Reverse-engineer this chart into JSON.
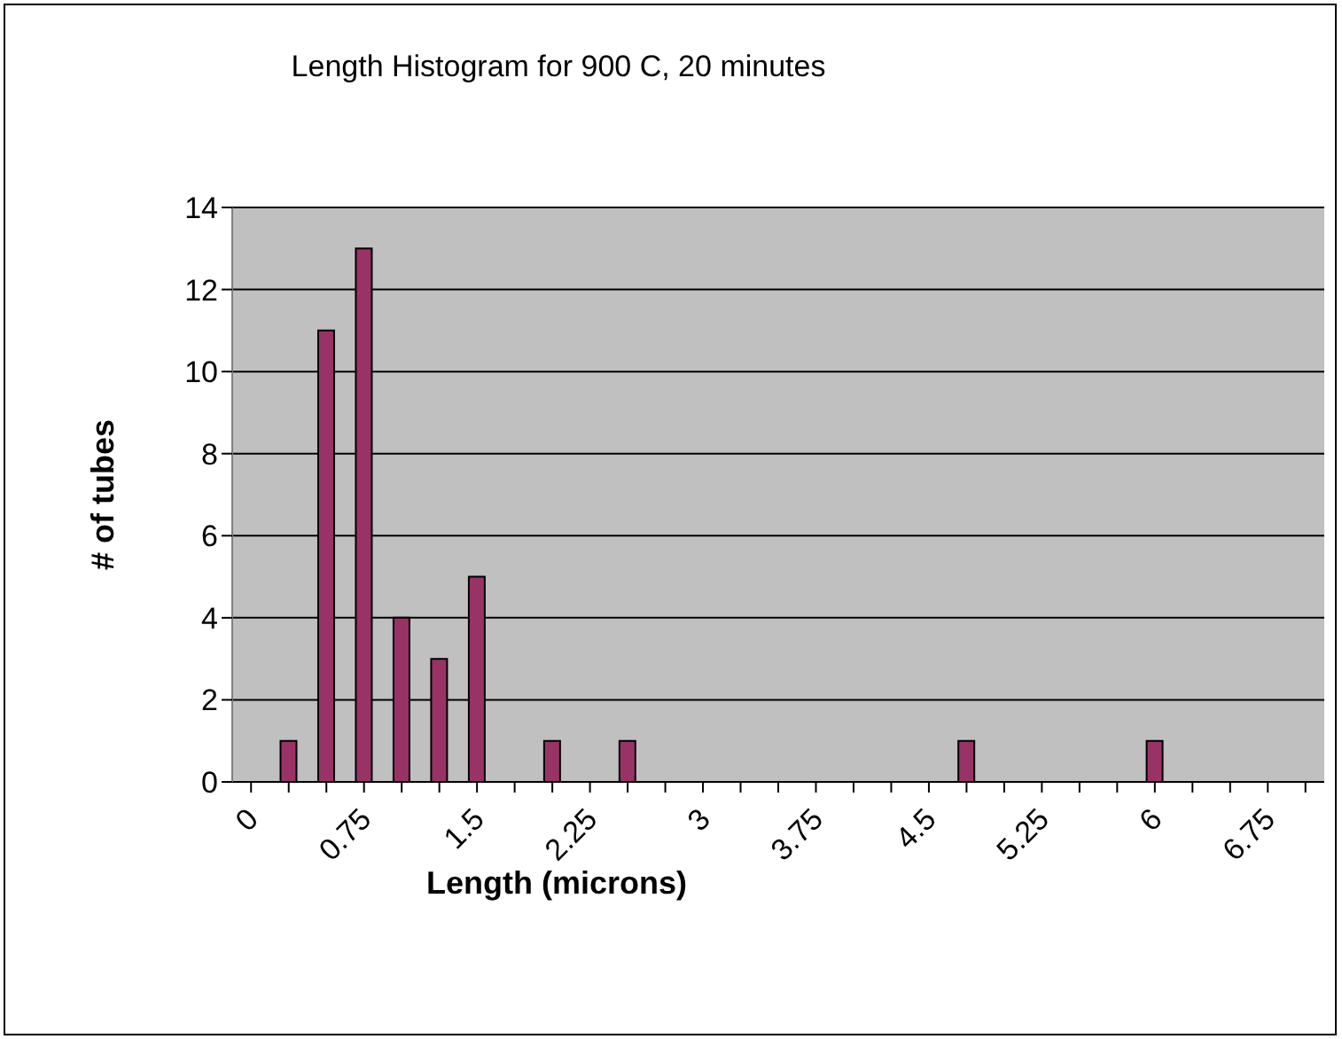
{
  "chart_data": {
    "type": "bar",
    "title": "Length Histogram for 900 C, 20 minutes",
    "xlabel": "Length (microns)",
    "ylabel": "# of tubes",
    "categories": [
      "0",
      null,
      null,
      "0.75",
      null,
      null,
      "1.5",
      null,
      null,
      "2.25",
      null,
      null,
      "3",
      null,
      null,
      "3.75",
      null,
      null,
      "4.5",
      null,
      null,
      "5.25",
      null,
      null,
      "6",
      null,
      null,
      "6.75",
      null
    ],
    "values": [
      0,
      1,
      11,
      13,
      4,
      3,
      5,
      0,
      1,
      0,
      1,
      0,
      0,
      0,
      0,
      0,
      0,
      0,
      0,
      1,
      0,
      0,
      0,
      0,
      1,
      0,
      0,
      0,
      0
    ],
    "color": "#993366",
    "ylim": [
      0,
      14
    ],
    "yticks": [
      0,
      2,
      4,
      6,
      8,
      10,
      12,
      14
    ],
    "grid": "y"
  }
}
